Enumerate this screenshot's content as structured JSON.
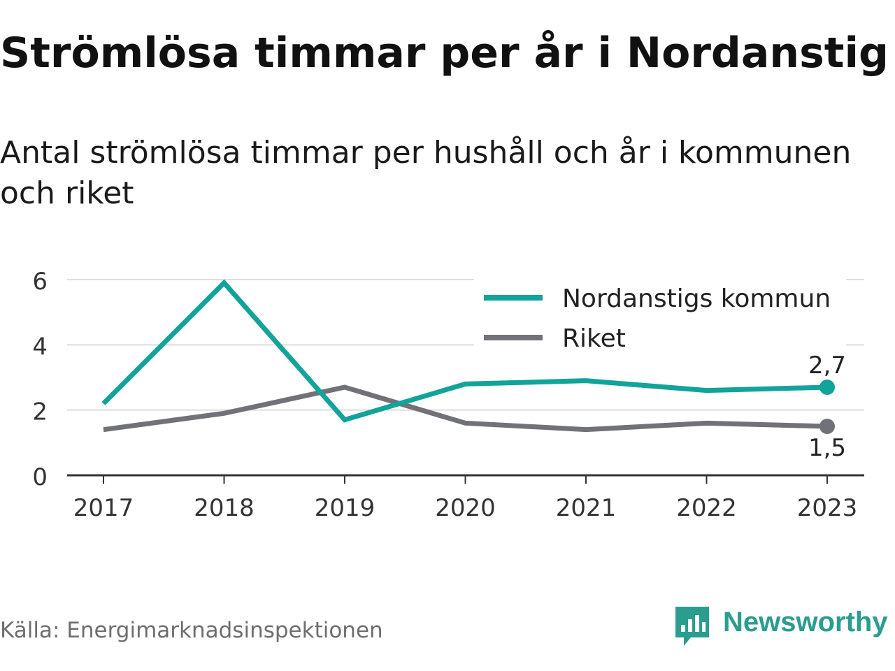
{
  "title": "Strömlösa timmar per år i Nordanstig",
  "subtitle": "Antal strömlösa timmar per hushåll och år i kommunen och riket",
  "source": "Källa: Energimarknadsinspektionen",
  "brand": {
    "name": "Newsworthy",
    "icon": "newsworthy-logo-icon",
    "color": "#2a9d8f"
  },
  "chart_data": {
    "type": "line",
    "x": [
      "2017",
      "2018",
      "2019",
      "2020",
      "2021",
      "2022",
      "2023"
    ],
    "series": [
      {
        "name": "Nordanstigs kommun",
        "color": "#12a39a",
        "values": [
          2.2,
          5.9,
          1.7,
          2.8,
          2.9,
          2.6,
          2.7
        ],
        "end_label": "2,7"
      },
      {
        "name": "Riket",
        "color": "#717178",
        "values": [
          1.4,
          1.9,
          2.7,
          1.6,
          1.4,
          1.6,
          1.5
        ],
        "end_label": "1,5"
      }
    ],
    "yticks": [
      "0",
      "2",
      "4",
      "6"
    ],
    "ylim": [
      0,
      6
    ],
    "grid": true,
    "legend": "top-right"
  }
}
